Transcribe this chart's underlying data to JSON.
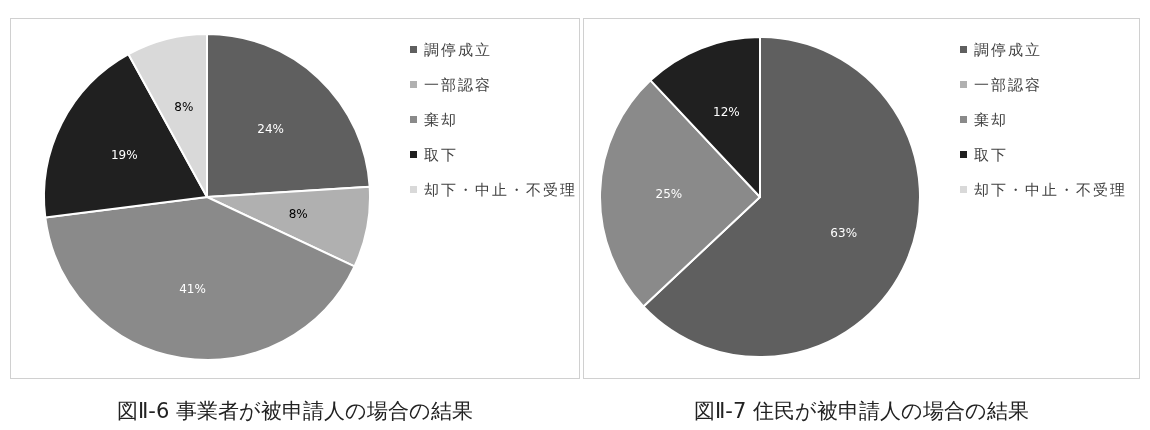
{
  "chart_data": [
    {
      "type": "pie",
      "title": "図Ⅱ-6 事業者が被申請人の場合の結果",
      "categories": [
        "調停成立",
        "一部認容",
        "棄却",
        "取下",
        "却下・中止・不受理"
      ],
      "values": [
        24,
        8,
        41,
        19,
        8
      ],
      "colors": [
        "#5f5f5f",
        "#b0b0b0",
        "#8a8a8a",
        "#202020",
        "#d9d9d9"
      ],
      "value_labels": [
        "24%",
        "8%",
        "41%",
        "19%",
        "8%"
      ],
      "legend": "right"
    },
    {
      "type": "pie",
      "title": "図Ⅱ-7 住民が被申請人の場合の結果",
      "categories": [
        "調停成立",
        "一部認容",
        "棄却",
        "取下",
        "却下・中止・不受理"
      ],
      "values": [
        63,
        0,
        25,
        12,
        0
      ],
      "colors": [
        "#5f5f5f",
        "#b0b0b0",
        "#8a8a8a",
        "#202020",
        "#d9d9d9"
      ],
      "value_labels": [
        "63%",
        null,
        "25%",
        "12%",
        null
      ],
      "legend": "right"
    }
  ]
}
